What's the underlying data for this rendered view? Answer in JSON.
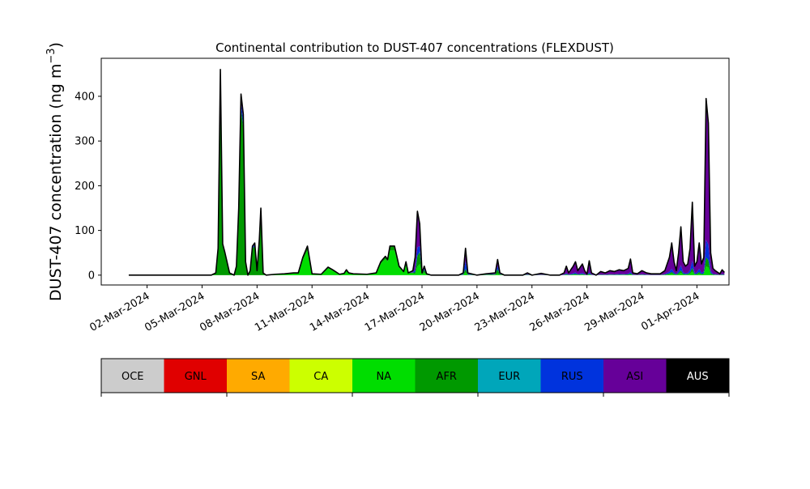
{
  "chart_data": {
    "type": "area",
    "stacked": true,
    "title": "Continental contribution to DUST-407 concentrations (FLEXDUST)",
    "ylabel": "DUST-407 concentration (ng m",
    "ylabel_exponent": "−3",
    "ylabel_suffix": ")",
    "xlabel": "",
    "ylim": [
      -22,
      485
    ],
    "yticks": [
      0,
      100,
      200,
      300,
      400
    ],
    "xlim": [
      "2024-02-28T12:00",
      "2024-04-02T18:00"
    ],
    "xticks": [
      "2024-03-02",
      "2024-03-05",
      "2024-03-08",
      "2024-03-11",
      "2024-03-14",
      "2024-03-17",
      "2024-03-20",
      "2024-03-23",
      "2024-03-26",
      "2024-03-29",
      "2024-04-01"
    ],
    "xtick_labels": [
      "02-Mar-2024",
      "05-Mar-2024",
      "08-Mar-2024",
      "11-Mar-2024",
      "14-Mar-2024",
      "17-Mar-2024",
      "20-Mar-2024",
      "23-Mar-2024",
      "26-Mar-2024",
      "29-Mar-2024",
      "01-Apr-2024"
    ],
    "grid": false,
    "series_order": [
      "NA",
      "AFR",
      "RUS",
      "ASI"
    ],
    "total_points": [
      [
        "2024-03-01T00:00",
        0
      ],
      [
        "2024-03-02T00:00",
        0
      ],
      [
        "2024-03-03T00:00",
        0
      ],
      [
        "2024-03-04T00:00",
        0
      ],
      [
        "2024-03-04T12:00",
        0
      ],
      [
        "2024-03-05T00:00",
        0
      ],
      [
        "2024-03-05T12:00",
        0
      ],
      [
        "2024-03-05T18:00",
        5
      ],
      [
        "2024-03-05T21:00",
        60
      ],
      [
        "2024-03-06T00:00",
        460
      ],
      [
        "2024-03-06T03:00",
        70
      ],
      [
        "2024-03-06T06:00",
        50
      ],
      [
        "2024-03-06T12:00",
        5
      ],
      [
        "2024-03-06T18:00",
        0
      ],
      [
        "2024-03-06T21:00",
        20
      ],
      [
        "2024-03-07T00:00",
        150
      ],
      [
        "2024-03-07T03:00",
        405
      ],
      [
        "2024-03-07T06:00",
        360
      ],
      [
        "2024-03-07T09:00",
        30
      ],
      [
        "2024-03-07T12:00",
        0
      ],
      [
        "2024-03-07T15:00",
        10
      ],
      [
        "2024-03-07T18:00",
        65
      ],
      [
        "2024-03-07T21:00",
        72
      ],
      [
        "2024-03-08T00:00",
        10
      ],
      [
        "2024-03-08T03:00",
        80
      ],
      [
        "2024-03-08T05:00",
        150
      ],
      [
        "2024-03-08T08:00",
        5
      ],
      [
        "2024-03-08T12:00",
        0
      ],
      [
        "2024-03-09T00:00",
        2
      ],
      [
        "2024-03-09T12:00",
        3
      ],
      [
        "2024-03-10T00:00",
        5
      ],
      [
        "2024-03-10T06:00",
        5
      ],
      [
        "2024-03-10T12:00",
        40
      ],
      [
        "2024-03-10T18:00",
        65
      ],
      [
        "2024-03-11T00:00",
        3
      ],
      [
        "2024-03-11T12:00",
        2
      ],
      [
        "2024-03-11T21:00",
        18
      ],
      [
        "2024-03-12T03:00",
        12
      ],
      [
        "2024-03-12T12:00",
        2
      ],
      [
        "2024-03-12T18:00",
        4
      ],
      [
        "2024-03-12T21:00",
        12
      ],
      [
        "2024-03-13T00:00",
        5
      ],
      [
        "2024-03-13T06:00",
        3
      ],
      [
        "2024-03-14T00:00",
        2
      ],
      [
        "2024-03-14T12:00",
        5
      ],
      [
        "2024-03-14T18:00",
        30
      ],
      [
        "2024-03-15T00:00",
        42
      ],
      [
        "2024-03-15T03:00",
        35
      ],
      [
        "2024-03-15T06:00",
        65
      ],
      [
        "2024-03-15T12:00",
        65
      ],
      [
        "2024-03-15T18:00",
        20
      ],
      [
        "2024-03-16T00:00",
        8
      ],
      [
        "2024-03-16T03:00",
        30
      ],
      [
        "2024-03-16T06:00",
        5
      ],
      [
        "2024-03-16T12:00",
        10
      ],
      [
        "2024-03-16T15:00",
        40
      ],
      [
        "2024-03-16T18:00",
        143
      ],
      [
        "2024-03-16T21:00",
        115
      ],
      [
        "2024-03-17T00:00",
        5
      ],
      [
        "2024-03-17T03:00",
        20
      ],
      [
        "2024-03-17T06:00",
        3
      ],
      [
        "2024-03-17T12:00",
        0
      ],
      [
        "2024-03-18T00:00",
        0
      ],
      [
        "2024-03-18T12:00",
        0
      ],
      [
        "2024-03-19T00:00",
        0
      ],
      [
        "2024-03-19T06:00",
        5
      ],
      [
        "2024-03-19T09:00",
        60
      ],
      [
        "2024-03-19T12:00",
        5
      ],
      [
        "2024-03-20T00:00",
        0
      ],
      [
        "2024-03-20T12:00",
        3
      ],
      [
        "2024-03-21T00:00",
        5
      ],
      [
        "2024-03-21T03:00",
        35
      ],
      [
        "2024-03-21T06:00",
        5
      ],
      [
        "2024-03-21T12:00",
        0
      ],
      [
        "2024-03-22T00:00",
        0
      ],
      [
        "2024-03-22T12:00",
        0
      ],
      [
        "2024-03-22T18:00",
        5
      ],
      [
        "2024-03-23T00:00",
        0
      ],
      [
        "2024-03-23T12:00",
        4
      ],
      [
        "2024-03-24T00:00",
        0
      ],
      [
        "2024-03-24T12:00",
        0
      ],
      [
        "2024-03-24T18:00",
        5
      ],
      [
        "2024-03-24T21:00",
        20
      ],
      [
        "2024-03-25T00:00",
        5
      ],
      [
        "2024-03-25T06:00",
        20
      ],
      [
        "2024-03-25T09:00",
        30
      ],
      [
        "2024-03-25T12:00",
        10
      ],
      [
        "2024-03-25T18:00",
        25
      ],
      [
        "2024-03-25T21:00",
        10
      ],
      [
        "2024-03-26T00:00",
        2
      ],
      [
        "2024-03-26T03:00",
        32
      ],
      [
        "2024-03-26T06:00",
        5
      ],
      [
        "2024-03-26T12:00",
        0
      ],
      [
        "2024-03-26T18:00",
        8
      ],
      [
        "2024-03-27T00:00",
        5
      ],
      [
        "2024-03-27T06:00",
        10
      ],
      [
        "2024-03-27T12:00",
        8
      ],
      [
        "2024-03-27T18:00",
        12
      ],
      [
        "2024-03-28T00:00",
        10
      ],
      [
        "2024-03-28T06:00",
        15
      ],
      [
        "2024-03-28T09:00",
        36
      ],
      [
        "2024-03-28T12:00",
        5
      ],
      [
        "2024-03-28T18:00",
        3
      ],
      [
        "2024-03-29T00:00",
        10
      ],
      [
        "2024-03-29T06:00",
        5
      ],
      [
        "2024-03-29T12:00",
        3
      ],
      [
        "2024-03-30T00:00",
        3
      ],
      [
        "2024-03-30T06:00",
        10
      ],
      [
        "2024-03-30T12:00",
        40
      ],
      [
        "2024-03-30T15:00",
        72
      ],
      [
        "2024-03-30T18:00",
        30
      ],
      [
        "2024-03-30T21:00",
        10
      ],
      [
        "2024-03-31T00:00",
        50
      ],
      [
        "2024-03-31T03:00",
        108
      ],
      [
        "2024-03-31T06:00",
        30
      ],
      [
        "2024-03-31T09:00",
        20
      ],
      [
        "2024-03-31T12:00",
        25
      ],
      [
        "2024-03-31T15:00",
        60
      ],
      [
        "2024-03-31T18:00",
        163
      ],
      [
        "2024-03-31T21:00",
        20
      ],
      [
        "2024-04-01T00:00",
        30
      ],
      [
        "2024-04-01T03:00",
        72
      ],
      [
        "2024-04-01T06:00",
        25
      ],
      [
        "2024-04-01T09:00",
        40
      ],
      [
        "2024-04-01T12:00",
        395
      ],
      [
        "2024-04-01T15:00",
        340
      ],
      [
        "2024-04-01T18:00",
        50
      ],
      [
        "2024-04-01T21:00",
        15
      ],
      [
        "2024-04-02T00:00",
        10
      ],
      [
        "2024-04-02T06:00",
        3
      ],
      [
        "2024-04-02T09:00",
        12
      ],
      [
        "2024-04-02T12:00",
        6
      ]
    ],
    "fraction_breaks": [
      [
        "2024-03-01T00:00",
        {
          "NA": 0.0,
          "AFR": 1.0,
          "RUS": 0.0,
          "ASI": 0.0
        }
      ],
      [
        "2024-03-08T08:00",
        {
          "NA": 0.0,
          "AFR": 0.9,
          "RUS": 0.05,
          "ASI": 0.05
        }
      ],
      [
        "2024-03-08T12:00",
        {
          "NA": 0.85,
          "AFR": 0.15,
          "RUS": 0.0,
          "ASI": 0.0
        }
      ],
      [
        "2024-03-16T09:00",
        {
          "NA": 0.85,
          "AFR": 0.15,
          "RUS": 0.0,
          "ASI": 0.0
        }
      ],
      [
        "2024-03-16T15:00",
        {
          "NA": 0.05,
          "AFR": 0.1,
          "RUS": 0.15,
          "ASI": 0.7
        }
      ],
      [
        "2024-03-17T00:00",
        {
          "NA": 0.3,
          "AFR": 0.3,
          "RUS": 0.1,
          "ASI": 0.3
        }
      ],
      [
        "2024-03-19T00:00",
        {
          "NA": 0.1,
          "AFR": 0.1,
          "RUS": 0.3,
          "ASI": 0.5
        }
      ],
      [
        "2024-03-21T00:00",
        {
          "NA": 0.1,
          "AFR": 0.3,
          "RUS": 0.2,
          "ASI": 0.4
        }
      ],
      [
        "2024-03-24T00:00",
        {
          "NA": 0.05,
          "AFR": 0.05,
          "RUS": 0.1,
          "ASI": 0.8
        }
      ],
      [
        "2024-04-02T12:00",
        {
          "NA": 0.05,
          "AFR": 0.05,
          "RUS": 0.1,
          "ASI": 0.8
        }
      ]
    ],
    "colorbar": [
      {
        "label": "OCE",
        "color": "#cccccc"
      },
      {
        "label": "GNL",
        "color": "#e00000"
      },
      {
        "label": "SA",
        "color": "#ffaa00"
      },
      {
        "label": "CA",
        "color": "#ccff00"
      },
      {
        "label": "NA",
        "color": "#00dd00"
      },
      {
        "label": "AFR",
        "color": "#009900"
      },
      {
        "label": "EUR",
        "color": "#00a6ba"
      },
      {
        "label": "RUS",
        "color": "#0033dd"
      },
      {
        "label": "ASI",
        "color": "#660099"
      },
      {
        "label": "AUS",
        "color": "#000000"
      }
    ],
    "colorbar_ticks_at": [
      0,
      2,
      4,
      6,
      8,
      10
    ]
  }
}
